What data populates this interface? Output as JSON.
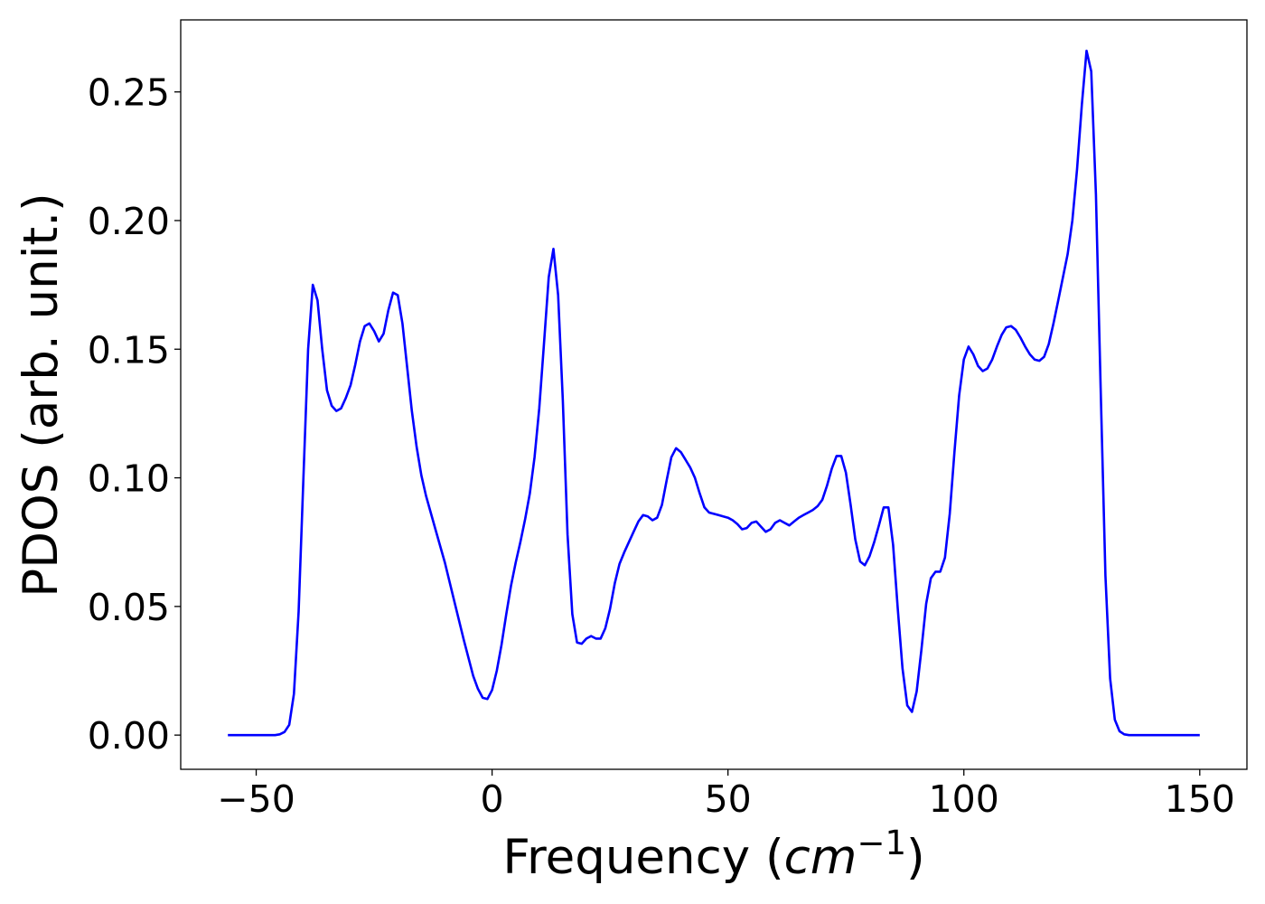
{
  "chart_data": {
    "type": "line",
    "title": "",
    "xlabel": "Frequency (",
    "xlabel_math": "cm",
    "xlabel_superscript": "−1",
    "xlabel_close": ")",
    "ylabel": "PDOS (arb. unit.)",
    "xlim": [
      -66,
      160
    ],
    "ylim": [
      -0.0133,
      0.278
    ],
    "x_ticks": [
      -50,
      0,
      50,
      100,
      150
    ],
    "x_tick_labels": [
      "−50",
      "0",
      "50",
      "100",
      "150"
    ],
    "y_ticks": [
      0.0,
      0.05,
      0.1,
      0.15,
      0.2,
      0.25
    ],
    "y_tick_labels": [
      "0.00",
      "0.05",
      "0.10",
      "0.15",
      "0.20",
      "0.25"
    ],
    "grid": false,
    "series": [
      {
        "color": "#0000ff",
        "points": [
          [
            -56,
            0.0
          ],
          [
            -46,
            0.0
          ],
          [
            -45,
            0.0003
          ],
          [
            -44,
            0.0012
          ],
          [
            -43,
            0.004
          ],
          [
            -42,
            0.016
          ],
          [
            -41,
            0.048
          ],
          [
            -40,
            0.1
          ],
          [
            -39,
            0.15
          ],
          [
            -38,
            0.175
          ],
          [
            -37,
            0.169
          ],
          [
            -36,
            0.15
          ],
          [
            -35,
            0.134
          ],
          [
            -34,
            0.128
          ],
          [
            -33,
            0.126
          ],
          [
            -32,
            0.127
          ],
          [
            -31,
            0.131
          ],
          [
            -30,
            0.136
          ],
          [
            -29,
            0.144
          ],
          [
            -28,
            0.153
          ],
          [
            -27,
            0.159
          ],
          [
            -26,
            0.16
          ],
          [
            -25,
            0.157
          ],
          [
            -24,
            0.153
          ],
          [
            -23,
            0.156
          ],
          [
            -22,
            0.165
          ],
          [
            -21,
            0.172
          ],
          [
            -20,
            0.171
          ],
          [
            -19,
            0.16
          ],
          [
            -18,
            0.143
          ],
          [
            -17,
            0.126
          ],
          [
            -16,
            0.112
          ],
          [
            -15,
            0.101
          ],
          [
            -14,
            0.093
          ],
          [
            -12,
            0.08
          ],
          [
            -10,
            0.067
          ],
          [
            -8,
            0.052
          ],
          [
            -6,
            0.037
          ],
          [
            -4,
            0.023
          ],
          [
            -3,
            0.018
          ],
          [
            -2,
            0.0145
          ],
          [
            -1,
            0.014
          ],
          [
            0,
            0.0175
          ],
          [
            1,
            0.025
          ],
          [
            2,
            0.035
          ],
          [
            3,
            0.047
          ],
          [
            4,
            0.058
          ],
          [
            5,
            0.067
          ],
          [
            6,
            0.075
          ],
          [
            7,
            0.084
          ],
          [
            8,
            0.094
          ],
          [
            9,
            0.108
          ],
          [
            10,
            0.127
          ],
          [
            11,
            0.152
          ],
          [
            12,
            0.178
          ],
          [
            13,
            0.189
          ],
          [
            14,
            0.171
          ],
          [
            15,
            0.13
          ],
          [
            16,
            0.078
          ],
          [
            17,
            0.047
          ],
          [
            18,
            0.036
          ],
          [
            19,
            0.0355
          ],
          [
            20,
            0.0375
          ],
          [
            21,
            0.0385
          ],
          [
            22,
            0.0375
          ],
          [
            23,
            0.0375
          ],
          [
            24,
            0.0415
          ],
          [
            25,
            0.049
          ],
          [
            26,
            0.059
          ],
          [
            27,
            0.0665
          ],
          [
            28,
            0.071
          ],
          [
            29,
            0.075
          ],
          [
            30,
            0.079
          ],
          [
            31,
            0.083
          ],
          [
            32,
            0.0855
          ],
          [
            33,
            0.085
          ],
          [
            34,
            0.0835
          ],
          [
            35,
            0.0845
          ],
          [
            36,
            0.0895
          ],
          [
            37,
            0.099
          ],
          [
            38,
            0.108
          ],
          [
            39,
            0.1115
          ],
          [
            40,
            0.11
          ],
          [
            41,
            0.107
          ],
          [
            42,
            0.104
          ],
          [
            43,
            0.1
          ],
          [
            44,
            0.094
          ],
          [
            45,
            0.0885
          ],
          [
            46,
            0.0865
          ],
          [
            47,
            0.086
          ],
          [
            48,
            0.0855
          ],
          [
            49,
            0.085
          ],
          [
            50,
            0.0845
          ],
          [
            51,
            0.0835
          ],
          [
            52,
            0.082
          ],
          [
            53,
            0.08
          ],
          [
            54,
            0.0805
          ],
          [
            55,
            0.0825
          ],
          [
            56,
            0.083
          ],
          [
            57,
            0.081
          ],
          [
            58,
            0.079
          ],
          [
            59,
            0.08
          ],
          [
            60,
            0.0825
          ],
          [
            61,
            0.0835
          ],
          [
            62,
            0.0825
          ],
          [
            63,
            0.0815
          ],
          [
            64,
            0.083
          ],
          [
            65,
            0.0845
          ],
          [
            66,
            0.0855
          ],
          [
            67,
            0.0865
          ],
          [
            68,
            0.0875
          ],
          [
            69,
            0.089
          ],
          [
            70,
            0.0915
          ],
          [
            71,
            0.097
          ],
          [
            72,
            0.1035
          ],
          [
            73,
            0.1085
          ],
          [
            74,
            0.1085
          ],
          [
            75,
            0.102
          ],
          [
            76,
            0.0895
          ],
          [
            77,
            0.076
          ],
          [
            78,
            0.0675
          ],
          [
            79,
            0.066
          ],
          [
            80,
            0.0695
          ],
          [
            81,
            0.075
          ],
          [
            82,
            0.0815
          ],
          [
            83,
            0.0885
          ],
          [
            84,
            0.0885
          ],
          [
            85,
            0.074
          ],
          [
            86,
            0.049
          ],
          [
            87,
            0.026
          ],
          [
            88,
            0.0115
          ],
          [
            89,
            0.009
          ],
          [
            90,
            0.017
          ],
          [
            91,
            0.033
          ],
          [
            92,
            0.051
          ],
          [
            93,
            0.061
          ],
          [
            94,
            0.0635
          ],
          [
            95,
            0.0635
          ],
          [
            96,
            0.069
          ],
          [
            97,
            0.086
          ],
          [
            98,
            0.11
          ],
          [
            99,
            0.132
          ],
          [
            100,
            0.146
          ],
          [
            101,
            0.151
          ],
          [
            102,
            0.148
          ],
          [
            103,
            0.1435
          ],
          [
            104,
            0.1415
          ],
          [
            105,
            0.1425
          ],
          [
            106,
            0.146
          ],
          [
            107,
            0.151
          ],
          [
            108,
            0.1555
          ],
          [
            109,
            0.1585
          ],
          [
            110,
            0.159
          ],
          [
            111,
            0.1575
          ],
          [
            112,
            0.1545
          ],
          [
            113,
            0.151
          ],
          [
            114,
            0.148
          ],
          [
            115,
            0.146
          ],
          [
            116,
            0.1455
          ],
          [
            117,
            0.147
          ],
          [
            118,
            0.152
          ],
          [
            119,
            0.16
          ],
          [
            120,
            0.169
          ],
          [
            121,
            0.178
          ],
          [
            122,
            0.187
          ],
          [
            123,
            0.2
          ],
          [
            124,
            0.22
          ],
          [
            125,
            0.245
          ],
          [
            126,
            0.266
          ],
          [
            127,
            0.258
          ],
          [
            128,
            0.21
          ],
          [
            129,
            0.135
          ],
          [
            130,
            0.062
          ],
          [
            131,
            0.022
          ],
          [
            132,
            0.006
          ],
          [
            133,
            0.0015
          ],
          [
            134,
            0.0003
          ],
          [
            135,
            0.0
          ],
          [
            150,
            0.0
          ]
        ]
      }
    ]
  }
}
